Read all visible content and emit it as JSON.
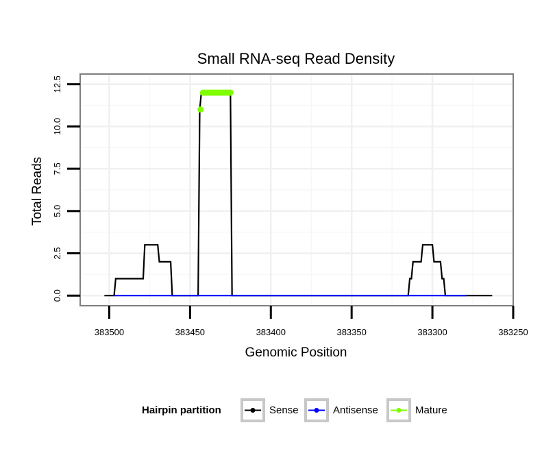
{
  "chart_data": {
    "type": "line",
    "title": "Small RNA-seq Read Density",
    "xlabel": "Genomic Position",
    "ylabel": "Total Reads",
    "xlim": [
      383518,
      383250
    ],
    "ylim": [
      -0.6,
      13.1
    ],
    "x_reversed": true,
    "grid": true,
    "x_ticks": [
      383500,
      383450,
      383400,
      383350,
      383300,
      383250
    ],
    "x_tick_labels": [
      "383500",
      "383450",
      "383400",
      "383350",
      "383300",
      "383250"
    ],
    "y_ticks": [
      0,
      2.5,
      5,
      7.5,
      10,
      12.5
    ],
    "y_tick_labels": [
      "0.0",
      "2.5",
      "5.0",
      "7.5",
      "10.0",
      "12.5"
    ],
    "legend": {
      "title": "Hairpin partition",
      "position": "bottom",
      "entries": [
        "Sense",
        "Antisense",
        "Mature"
      ]
    },
    "series": [
      {
        "name": "Sense",
        "color": "#000000",
        "x": [
          383503,
          383497,
          383496,
          383479,
          383478,
          383470,
          383469,
          383462,
          383461,
          383445,
          383444,
          383443,
          383442,
          383425,
          383424,
          383315,
          383314,
          383313,
          383312,
          383307,
          383306,
          383300,
          383299,
          383295,
          383294,
          383293,
          383292,
          383279,
          383263
        ],
        "values": [
          0,
          0,
          1,
          1,
          3,
          3,
          2,
          2,
          0,
          0,
          11,
          12,
          12,
          12,
          0,
          0,
          1,
          1,
          2,
          2,
          3,
          3,
          2,
          2,
          1,
          1,
          0,
          0,
          0
        ]
      },
      {
        "name": "Antisense",
        "color": "#0000ff",
        "x": [
          383497,
          383279
        ],
        "values": [
          0,
          0
        ]
      },
      {
        "name": "Mature",
        "color": "#7fff00",
        "x": [
          383443.5,
          383442,
          383441,
          383440,
          383439,
          383438,
          383437,
          383436,
          383435,
          383434,
          383433,
          383432,
          383431,
          383430,
          383429,
          383428,
          383427,
          383426,
          383425
        ],
        "values": [
          11,
          12,
          12,
          12,
          12,
          12,
          12,
          12,
          12,
          12,
          12,
          12,
          12,
          12,
          12,
          12,
          12,
          12,
          12
        ]
      }
    ]
  }
}
